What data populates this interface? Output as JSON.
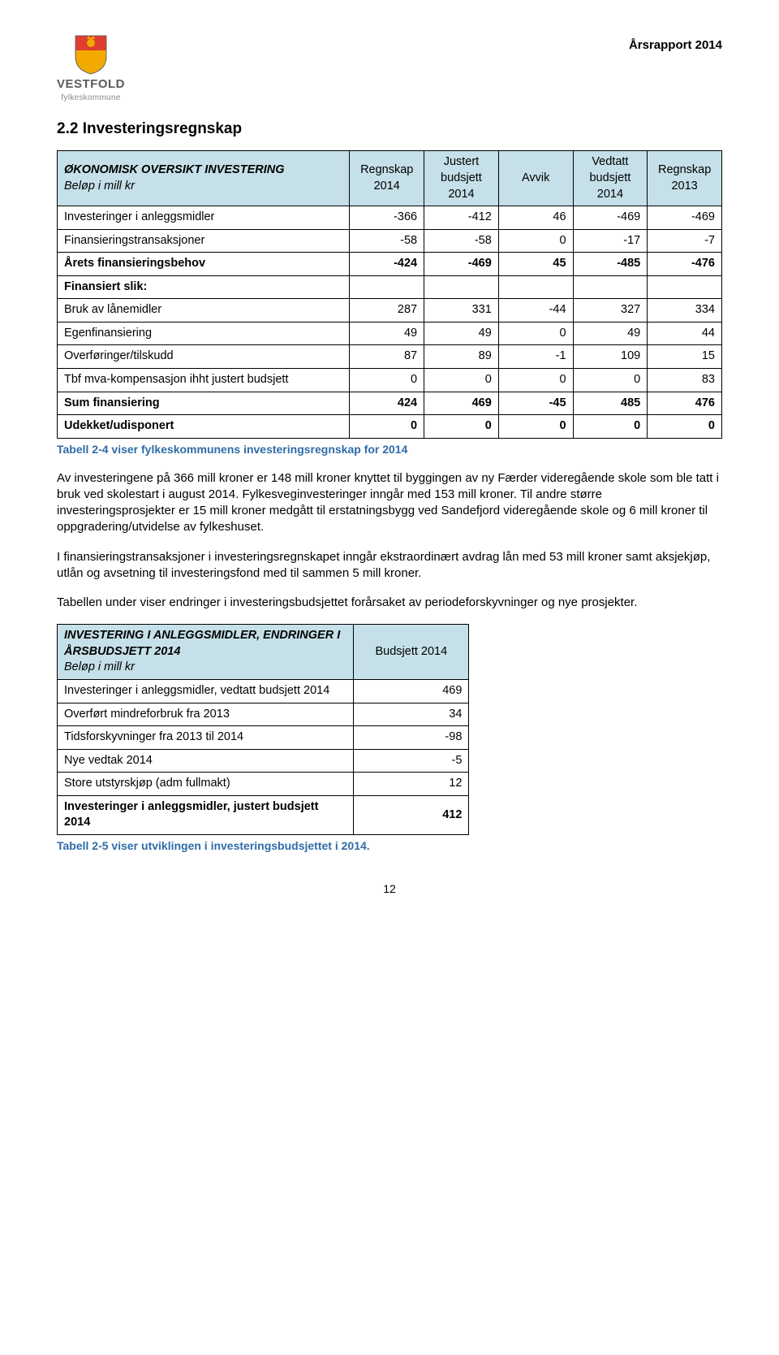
{
  "header": {
    "org_name": "VESTFOLD",
    "org_sub": "fylkeskommune",
    "doc_title": "Årsrapport 2014",
    "shield_colors": {
      "top": "#e03c31",
      "bottom": "#f2a900",
      "crown": "#f2a900"
    }
  },
  "section_title": "2.2   Investeringsregnskap",
  "table1": {
    "type": "table",
    "background_header": "#c5e0e8",
    "border_color": "#000000",
    "header": {
      "col0": "ØKONOMISK OVERSIKT INVESTERING",
      "col0_sub": "Beløp i mill kr",
      "col1": "Regnskap 2014",
      "col2": "Justert budsjett 2014",
      "col3": "Avvik",
      "col4": "Vedtatt budsjett 2014",
      "col5": "Regnskap 2013"
    },
    "rows": [
      {
        "label": "Investeringer i anleggsmidler",
        "v": [
          "-366",
          "-412",
          "46",
          "-469",
          "-469"
        ],
        "style": ""
      },
      {
        "label": "Finansieringstransaksjoner",
        "v": [
          "-58",
          "-58",
          "0",
          "-17",
          "-7"
        ],
        "style": ""
      },
      {
        "label": "Årets finansieringsbehov",
        "v": [
          "-424",
          "-469",
          "45",
          "-485",
          "-476"
        ],
        "style": "bold"
      },
      {
        "label": "Finansiert slik:",
        "v": [
          "",
          "",
          "",
          "",
          ""
        ],
        "style": "bold"
      },
      {
        "label": "Bruk av lånemidler",
        "v": [
          "287",
          "331",
          "-44",
          "327",
          "334"
        ],
        "style": ""
      },
      {
        "label": "Egenfinansiering",
        "v": [
          "49",
          "49",
          "0",
          "49",
          "44"
        ],
        "style": ""
      },
      {
        "label": "Overføringer/tilskudd",
        "v": [
          "87",
          "89",
          "-1",
          "109",
          "15"
        ],
        "style": ""
      },
      {
        "label": "Tbf mva-kompensasjon ihht justert budsjett",
        "v": [
          "0",
          "0",
          "0",
          "0",
          "83"
        ],
        "style": ""
      },
      {
        "label": "Sum finansiering",
        "v": [
          "424",
          "469",
          "-45",
          "485",
          "476"
        ],
        "style": "bold"
      },
      {
        "label": "Udekket/udisponert",
        "v": [
          "0",
          "0",
          "0",
          "0",
          "0"
        ],
        "style": "bold"
      }
    ],
    "caption": "Tabell 2-4 viser fylkeskommunens investeringsregnskap for 2014"
  },
  "paragraphs": [
    "Av investeringene på 366 mill kroner er 148 mill kroner knyttet til byggingen av ny Færder videregående skole som ble tatt i bruk ved skolestart i august 2014. Fylkesveginvesteringer inngår med 153 mill kroner. Til andre større investeringsprosjekter er 15 mill kroner medgått til erstatningsbygg ved Sandefjord videregående skole og 6 mill kroner til oppgradering/utvidelse av fylkeshuset.",
    "I finansieringstransaksjoner i investeringsregnskapet inngår ekstraordinært avdrag lån med 53 mill kroner samt aksjekjøp, utlån og avsetning til investeringsfond med til sammen 5 mill kroner.",
    "Tabellen under viser endringer i investeringsbudsjettet forårsaket av periodeforskyvninger og nye prosjekter."
  ],
  "table2": {
    "type": "table",
    "background_header": "#c5e0e8",
    "border_color": "#000000",
    "header": {
      "col0": "INVESTERING I ANLEGGSMIDLER, ENDRINGER I ÅRSBUDSJETT 2014",
      "col0_sub": "Beløp i mill kr",
      "col1": "Budsjett 2014"
    },
    "rows": [
      {
        "label": "Investeringer i anleggsmidler, vedtatt budsjett 2014",
        "v": [
          "469"
        ],
        "style": ""
      },
      {
        "label": "Overført mindreforbruk fra 2013",
        "v": [
          "34"
        ],
        "style": ""
      },
      {
        "label": "Tidsforskyvninger fra 2013 til 2014",
        "v": [
          "-98"
        ],
        "style": ""
      },
      {
        "label": "Nye vedtak 2014",
        "v": [
          "-5"
        ],
        "style": ""
      },
      {
        "label": "Store utstyrskjøp (adm fullmakt)",
        "v": [
          "12"
        ],
        "style": ""
      },
      {
        "label": "Investeringer i anleggsmidler, justert budsjett 2014",
        "v": [
          "412"
        ],
        "style": "bold"
      }
    ],
    "caption": "Tabell 2-5 viser utviklingen i investeringsbudsjettet i 2014."
  },
  "page_number": "12"
}
